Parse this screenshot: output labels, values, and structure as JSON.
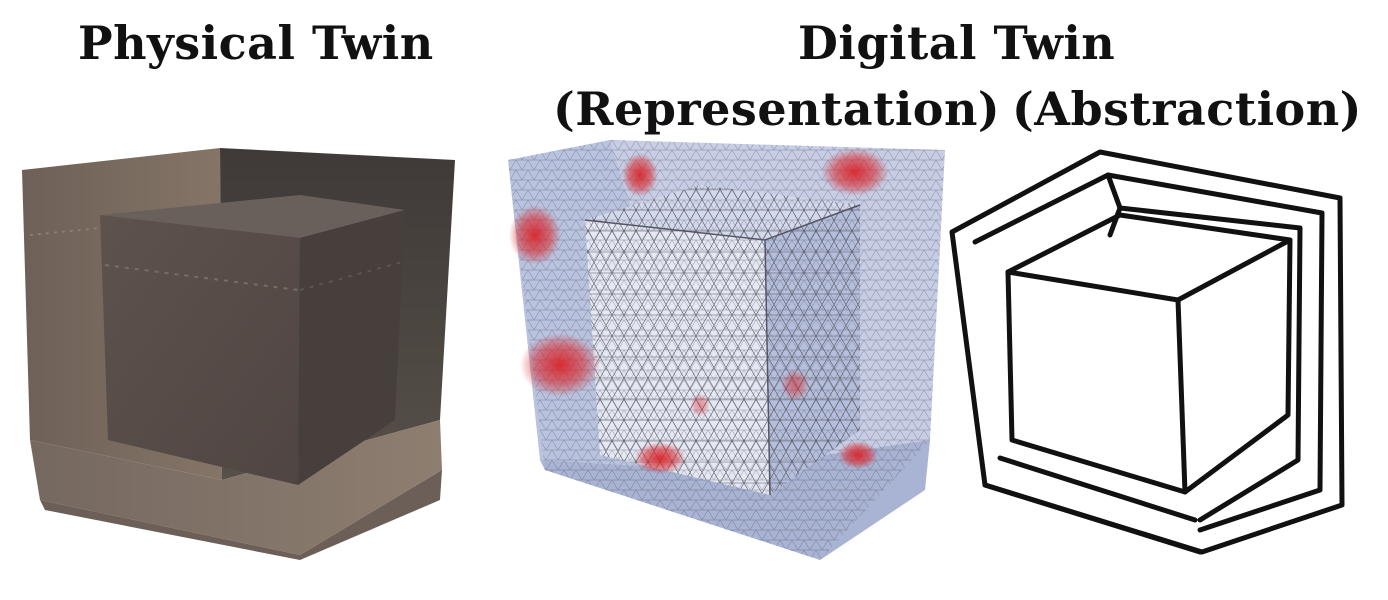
{
  "labels": {
    "physical": "Physical Twin",
    "digital": "Digital Twin",
    "representation": "(Representation)",
    "abstraction": "(Abstraction)"
  },
  "colors": {
    "physical_dark": "#4a423e",
    "physical_mid": "#6b5f57",
    "physical_light": "#857567",
    "mesh_base": "#b9c3df",
    "mesh_light": "#e4e8f3",
    "mesh_hot": "#d9252a",
    "mesh_line": "#4b4b55",
    "sketch_line": "#111111"
  },
  "icons": {
    "physical": "textured-cube-in-corner-photo",
    "representation": "triangulated-mesh-cube-heatmap",
    "abstraction": "line-sketch-cube-in-corner"
  }
}
